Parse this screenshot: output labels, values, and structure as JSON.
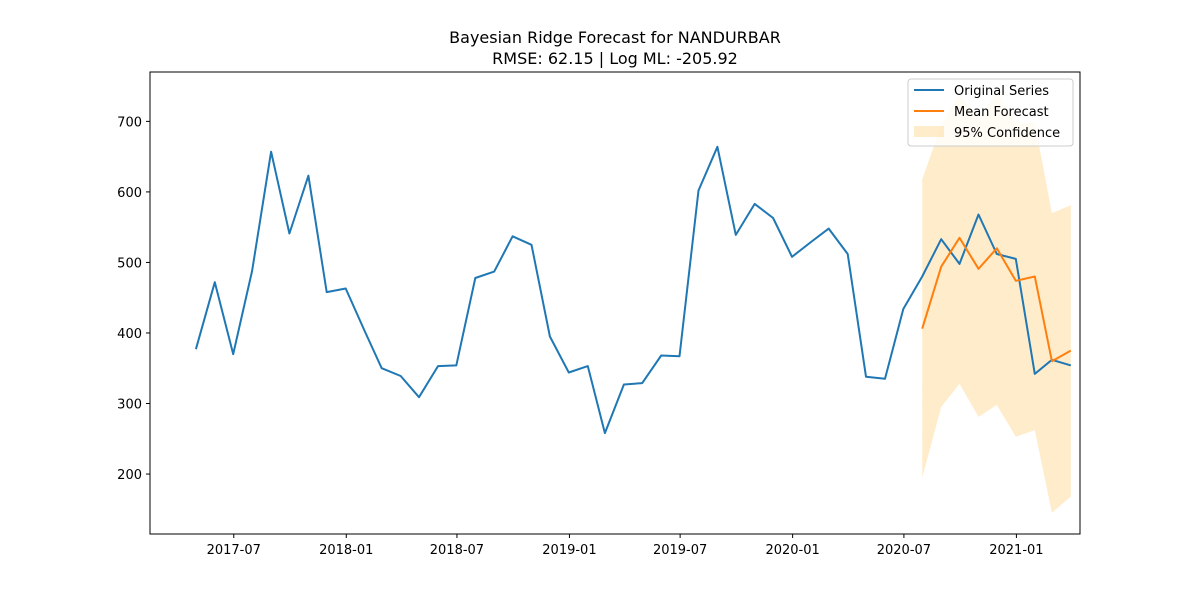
{
  "chart_data": {
    "type": "line",
    "title": "Bayesian Ridge Forecast for NANDURBAR",
    "subtitle": "RMSE: 62.15 | Log ML: -205.92",
    "xlabel": "",
    "ylabel": "",
    "xlim": [
      "2017-02-14",
      "2021-04-15"
    ],
    "ylim": [
      115,
      770
    ],
    "x_ticks": [
      "2017-07",
      "2018-01",
      "2018-07",
      "2019-01",
      "2019-07",
      "2020-01",
      "2020-07",
      "2021-01"
    ],
    "y_ticks": [
      200,
      300,
      400,
      500,
      600,
      700
    ],
    "grid": false,
    "legend_position": "top-right",
    "colors": {
      "original": "#1f77b4",
      "forecast": "#ff7f0e",
      "confidence": "#ffdfa8"
    },
    "series": [
      {
        "name": "Original Series",
        "x": [
          "2017-04",
          "2017-05",
          "2017-06",
          "2017-07",
          "2017-08",
          "2017-09",
          "2017-10",
          "2017-11",
          "2017-12",
          "2018-01",
          "2018-02",
          "2018-03",
          "2018-04",
          "2018-05",
          "2018-06",
          "2018-07",
          "2018-08",
          "2018-09",
          "2018-10",
          "2018-11",
          "2018-12",
          "2019-01",
          "2019-02",
          "2019-03",
          "2019-04",
          "2019-05",
          "2019-06",
          "2019-07",
          "2019-08",
          "2019-09",
          "2019-10",
          "2019-11",
          "2019-12",
          "2020-01",
          "2020-02",
          "2020-03",
          "2020-04",
          "2020-05",
          "2020-06",
          "2020-07",
          "2020-08",
          "2020-09",
          "2020-10",
          "2020-11",
          "2020-12",
          "2021-01",
          "2021-02",
          "2021-03"
        ],
        "values": [
          377,
          472,
          370,
          488,
          657,
          541,
          623,
          458,
          463,
          403,
          350,
          339,
          309,
          353,
          354,
          478,
          487,
          537,
          525,
          395,
          344,
          353,
          258,
          327,
          329,
          368,
          367,
          602,
          664,
          539,
          583,
          563,
          508,
          529,
          548,
          512,
          338,
          335,
          434,
          480,
          533,
          498,
          568,
          512,
          505,
          342,
          362,
          354
        ]
      },
      {
        "name": "Mean Forecast",
        "x": [
          "2020-07",
          "2020-08",
          "2020-09",
          "2020-10",
          "2020-11",
          "2020-12",
          "2021-01",
          "2021-02",
          "2021-03"
        ],
        "values": [
          406,
          494,
          535,
          491,
          520,
          474,
          480,
          360,
          375
        ]
      },
      {
        "name": "95% Confidence",
        "x": [
          "2020-07",
          "2020-08",
          "2020-09",
          "2020-10",
          "2020-11",
          "2020-12",
          "2021-01",
          "2021-02",
          "2021-03"
        ],
        "lower": [
          195,
          295,
          328,
          281,
          298,
          253,
          262,
          145,
          168
        ],
        "upper": [
          618,
          694,
          740,
          700,
          742,
          696,
          698,
          570,
          581
        ]
      }
    ]
  }
}
